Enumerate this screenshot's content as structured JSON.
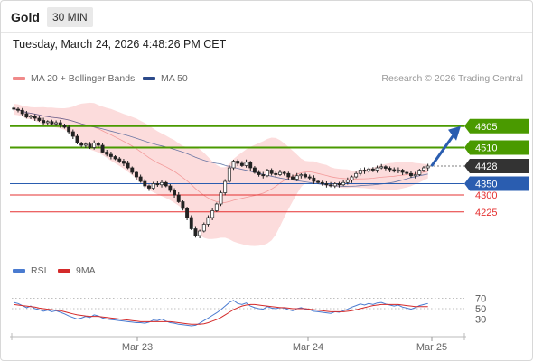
{
  "header": {
    "title": "Gold",
    "interval": "30 MIN"
  },
  "timestamp": "Tuesday, March 24, 2026 4:48:26 PM CET",
  "legend": {
    "ma20": {
      "label": "MA 20 + Bollinger Bands",
      "color": "#f08a8a"
    },
    "ma50": {
      "label": "MA 50",
      "color": "#2c4a8a"
    }
  },
  "copyright": "Research © 2026 Trading Central",
  "rsi_legend": {
    "rsi": {
      "label": "RSI",
      "color": "#4a7bd0"
    },
    "ma9": {
      "label": "9MA",
      "color": "#d42a2a"
    }
  },
  "chart_data": {
    "type": "candlestick",
    "y_range": [
      4020,
      4760
    ],
    "x_labels": [
      "Mar 23",
      "Mar 24",
      "Mar 25"
    ],
    "levels": [
      {
        "value": 4605,
        "label": "4605",
        "kind": "resistance",
        "color": "#4a9a00"
      },
      {
        "value": 4510,
        "label": "4510",
        "kind": "resistance",
        "color": "#4a9a00"
      },
      {
        "value": 4428,
        "label": "4428",
        "kind": "last",
        "color": "#333333"
      },
      {
        "value": 4350,
        "label": "4350",
        "kind": "support",
        "color": "#2a5db0"
      },
      {
        "value": 4300,
        "label": "4300",
        "kind": "support-minor",
        "color": "#e53030"
      },
      {
        "value": 4225,
        "label": "4225",
        "kind": "support-minor",
        "color": "#e53030"
      }
    ],
    "closes": [
      4680,
      4675,
      4660,
      4645,
      4650,
      4640,
      4630,
      4620,
      4625,
      4615,
      4620,
      4610,
      4600,
      4580,
      4560,
      4530,
      4520,
      4525,
      4510,
      4530,
      4520,
      4490,
      4480,
      4470,
      4460,
      4450,
      4440,
      4420,
      4400,
      4380,
      4360,
      4340,
      4330,
      4350,
      4345,
      4355,
      4340,
      4320,
      4300,
      4270,
      4240,
      4200,
      4150,
      4120,
      4140,
      4170,
      4200,
      4230,
      4260,
      4310,
      4360,
      4420,
      4450,
      4440,
      4430,
      4445,
      4420,
      4400,
      4390,
      4385,
      4410,
      4395,
      4390,
      4400,
      4395,
      4380,
      4370,
      4385,
      4390,
      4380,
      4375,
      4360,
      4355,
      4350,
      4345,
      4340,
      4350,
      4345,
      4355,
      4365,
      4380,
      4395,
      4410,
      4405,
      4415,
      4410,
      4420,
      4425,
      4418,
      4412,
      4405,
      4410,
      4400,
      4395,
      4385,
      4390,
      4410,
      4420,
      4428
    ],
    "projection": {
      "from": 4428,
      "to": 4605
    },
    "rsi": {
      "levels": [
        70,
        50,
        30
      ],
      "range": [
        10,
        90
      ],
      "rsi_values": [
        62,
        60,
        56,
        52,
        55,
        50,
        48,
        45,
        47,
        44,
        46,
        43,
        40,
        36,
        33,
        30,
        32,
        35,
        33,
        38,
        36,
        32,
        30,
        29,
        28,
        27,
        26,
        25,
        24,
        23,
        23,
        22,
        24,
        28,
        27,
        30,
        26,
        23,
        22,
        20,
        19,
        18,
        17,
        18,
        22,
        27,
        32,
        37,
        42,
        48,
        55,
        62,
        66,
        60,
        58,
        61,
        55,
        52,
        50,
        49,
        54,
        51,
        50,
        52,
        51,
        48,
        46,
        50,
        52,
        49,
        48,
        45,
        44,
        43,
        42,
        41,
        44,
        43,
        46,
        49,
        53,
        56,
        59,
        57,
        60,
        58,
        61,
        62,
        59,
        57,
        55,
        57,
        53,
        51,
        49,
        52,
        56,
        58,
        60
      ],
      "ma9_values": [
        58,
        57,
        56,
        55,
        54,
        53,
        51,
        50,
        49,
        48,
        47,
        46,
        44,
        42,
        40,
        38,
        37,
        36,
        35,
        35,
        35,
        34,
        33,
        32,
        31,
        30,
        29,
        28,
        27,
        26,
        25,
        25,
        25,
        25,
        25,
        25,
        25,
        25,
        24,
        23,
        22,
        21,
        20,
        20,
        20,
        21,
        23,
        26,
        29,
        33,
        38,
        43,
        48,
        52,
        55,
        57,
        58,
        58,
        57,
        56,
        55,
        54,
        53,
        52,
        52,
        51,
        50,
        50,
        50,
        50,
        49,
        48,
        47,
        46,
        45,
        44,
        44,
        44,
        44,
        45,
        46,
        48,
        50,
        52,
        54,
        56,
        57,
        58,
        58,
        58,
        58,
        58,
        57,
        56,
        55,
        54,
        54,
        54,
        54
      ]
    }
  }
}
